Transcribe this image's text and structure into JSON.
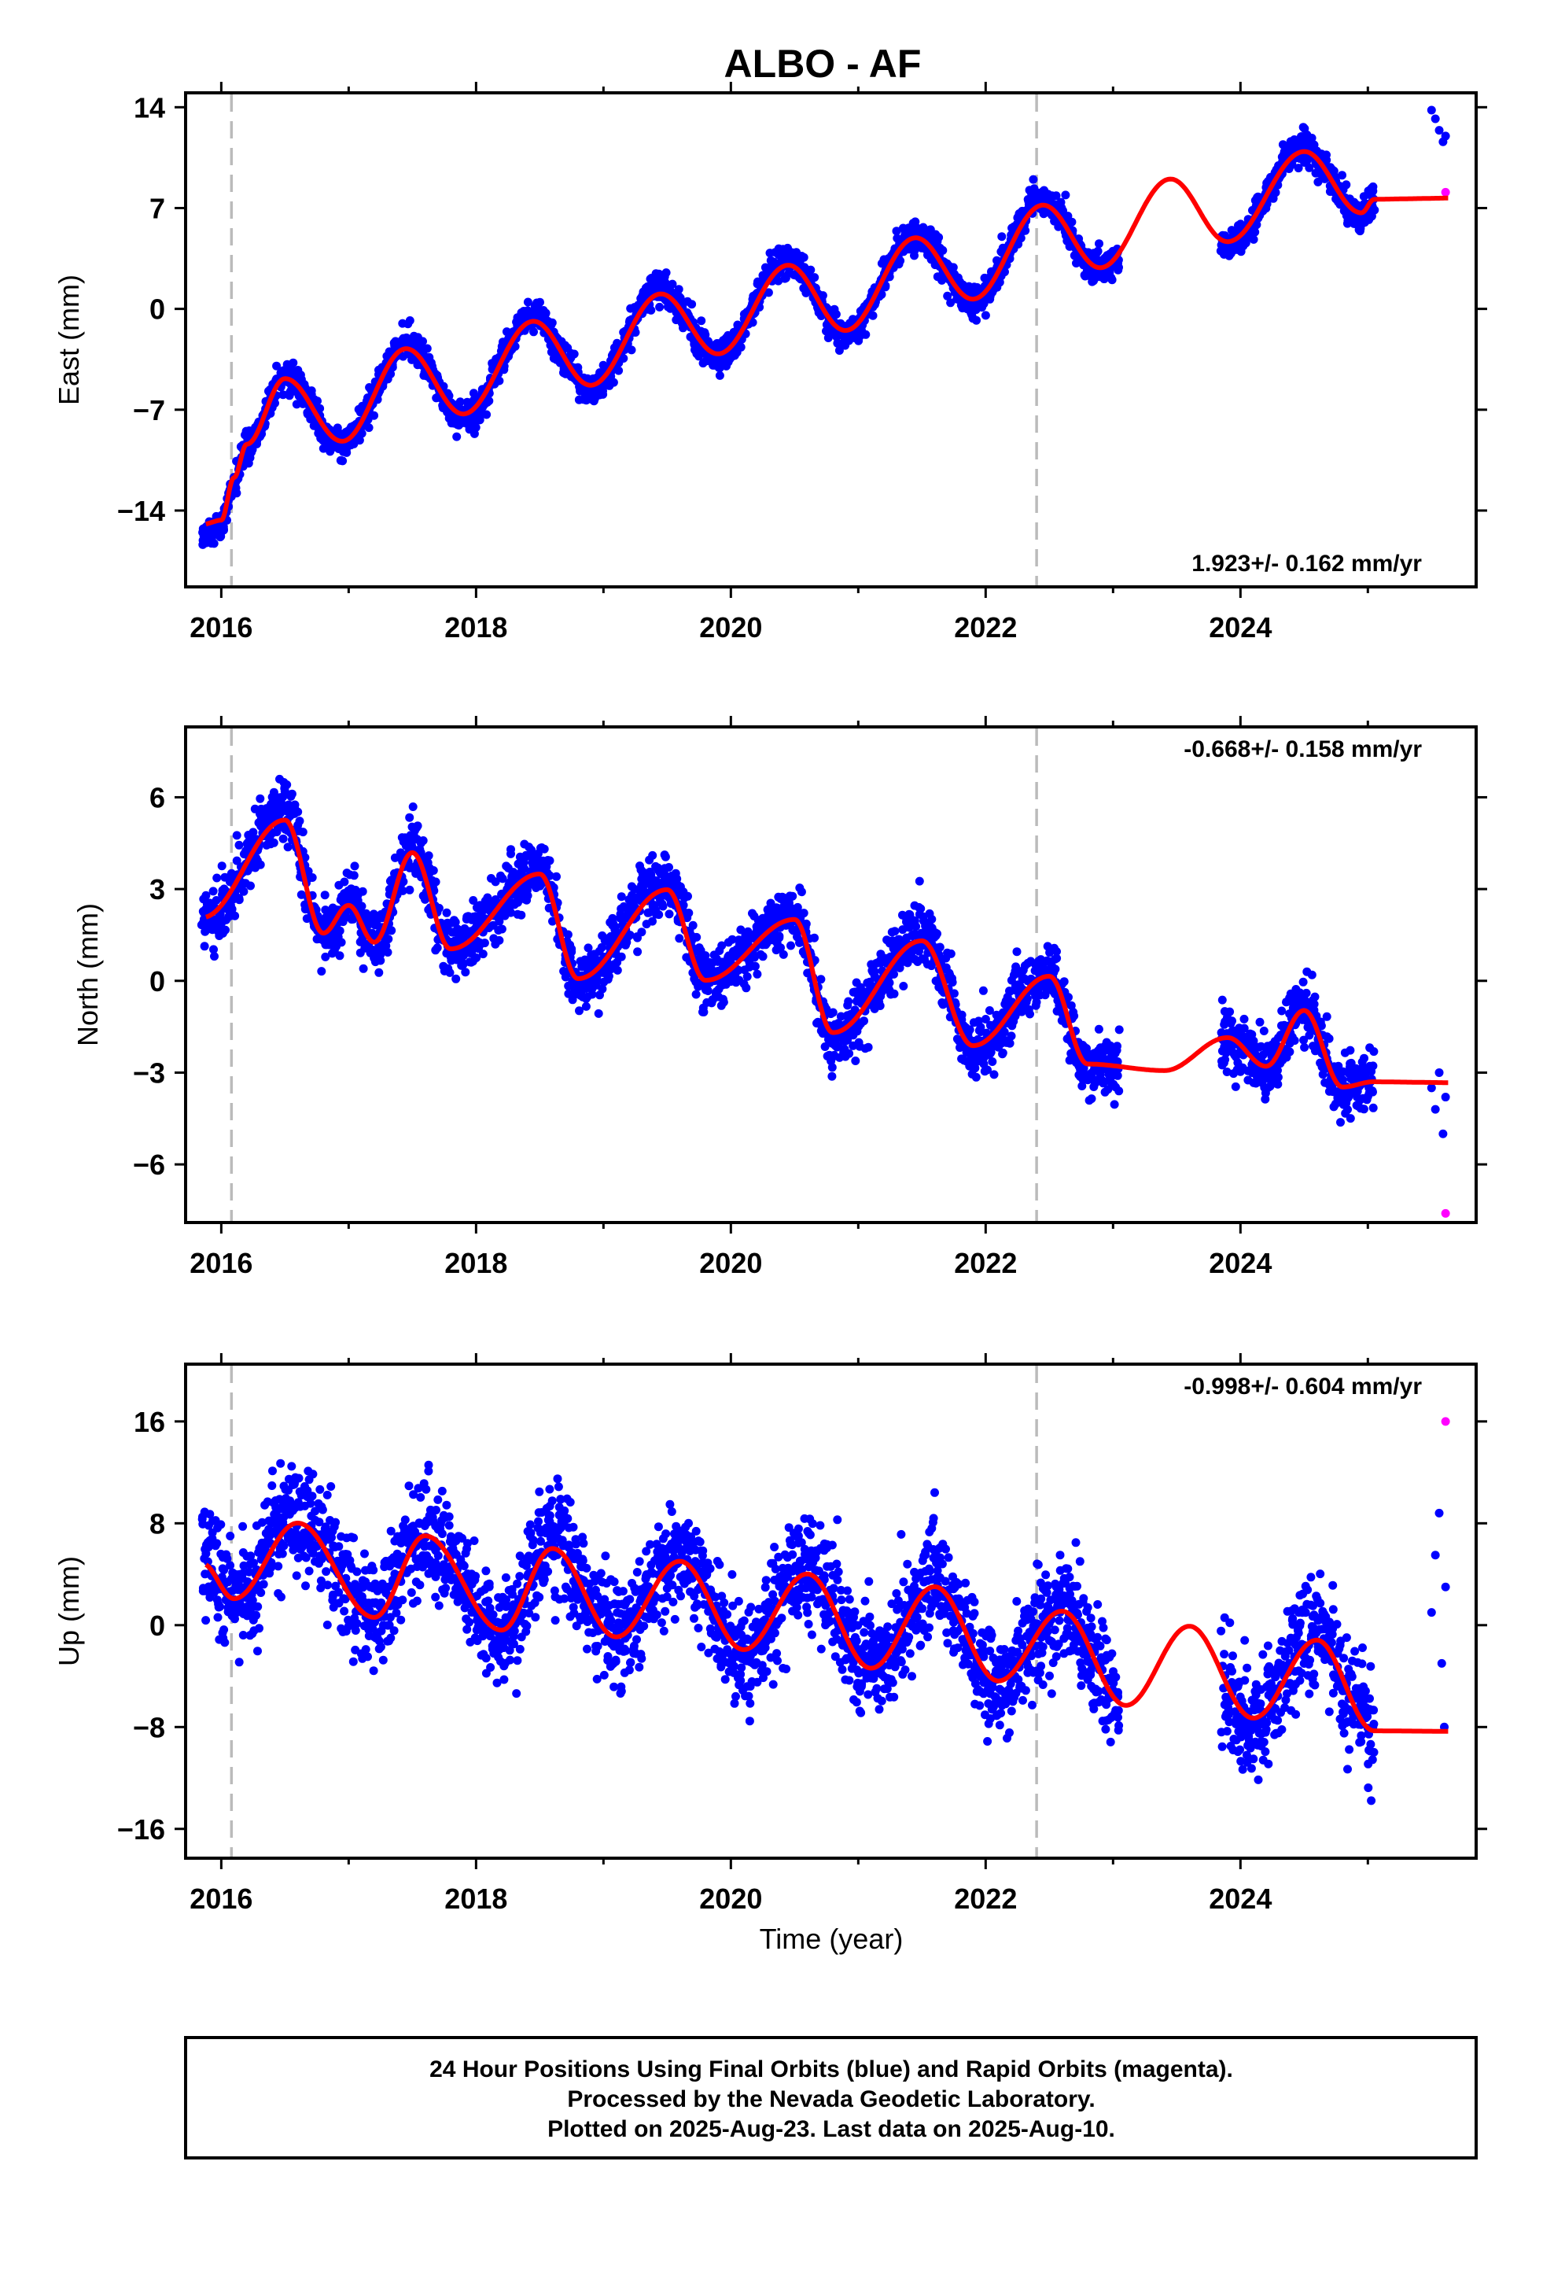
{
  "title": "ALBO - AF",
  "xlabel": "Time (year)",
  "footer": {
    "line1": "24 Hour Positions Using Final Orbits (blue) and Rapid Orbits (magenta).",
    "line2": "Processed by the Nevada Geodetic Laboratory.",
    "line3": "Plotted on 2025-Aug-23. Last data on 2025-Aug-10."
  },
  "colors": {
    "final_orbits": "#0000ff",
    "rapid_orbits": "#ff00ff",
    "model_fit": "#ff0000",
    "event_lines": "#bbbbbb"
  },
  "chart_data": [
    {
      "type": "scatter",
      "component": "east",
      "ylabel": "East (mm)",
      "xlim": [
        2015.72,
        2025.85
      ],
      "ylim": [
        -19.3,
        15
      ],
      "yticks": [
        14,
        7,
        0,
        -7,
        -14
      ],
      "ytick_labels": [
        "14",
        "7",
        "0",
        "−7",
        "−14"
      ],
      "xticks": [
        2016,
        2018,
        2020,
        2022,
        2024
      ],
      "xtick_labels": [
        "2016",
        "2018",
        "2020",
        "2022",
        "2024"
      ],
      "rate_text": "1.923+/- 0.162 mm/yr",
      "rate_position": "bottom-right",
      "event_lines": [
        2016.08,
        2022.4
      ],
      "model": {
        "rate": 1.923,
        "offset_2020": -0.9,
        "annual_amp": 3.6,
        "annual_phase": 2019.48,
        "semiannual_amp": 0.4,
        "semiannual_phase": 2019.5
      },
      "series": [
        {
          "name": "Final Orbits (blue)",
          "trend_points": [
            [
              2015.85,
              -15.5
            ],
            [
              2016.0,
              -15.2
            ],
            [
              2016.1,
              -12.0
            ],
            [
              2016.2,
              -9.5
            ],
            [
              2016.5,
              -4.6
            ],
            [
              2016.95,
              -9.4
            ],
            [
              2017.45,
              -2.5
            ],
            [
              2017.9,
              -7.5
            ],
            [
              2018.45,
              -0.6
            ],
            [
              2018.9,
              -5.5
            ],
            [
              2019.45,
              1.3
            ],
            [
              2019.9,
              -3.3
            ],
            [
              2020.45,
              3.3
            ],
            [
              2020.9,
              -1.7
            ],
            [
              2021.45,
              5.2
            ],
            [
              2021.9,
              0.5
            ],
            [
              2022.45,
              7.5
            ],
            [
              2022.9,
              2.7
            ],
            [
              2023.45,
              9.3
            ],
            [
              2023.9,
              4.5
            ],
            [
              2024.5,
              11.2
            ],
            [
              2024.95,
              6.5
            ],
            [
              2025.05,
              7.5
            ]
          ],
          "noise": 1.0,
          "spacing": 0.0027,
          "gaps": [
            [
              2023.05,
              2023.85
            ],
            [
              2025.1,
              2025.48
            ]
          ]
        },
        {
          "name": "Final Orbits (blue) recent",
          "points": [
            [
              2025.5,
              13.8
            ],
            [
              2025.53,
              13.2
            ],
            [
              2025.56,
              12.4
            ],
            [
              2025.59,
              11.6
            ],
            [
              2025.61,
              12.0
            ]
          ]
        },
        {
          "name": "Rapid Orbits (magenta)",
          "points": [
            [
              2025.61,
              8.1
            ]
          ]
        }
      ]
    },
    {
      "type": "scatter",
      "component": "north",
      "ylabel": "North (mm)",
      "xlim": [
        2015.72,
        2025.85
      ],
      "ylim": [
        -7.9,
        8.3
      ],
      "yticks": [
        6,
        3,
        0,
        -3,
        -6
      ],
      "ytick_labels": [
        "6",
        "3",
        "0",
        "−3",
        "−6"
      ],
      "xticks": [
        2016,
        2018,
        2020,
        2022,
        2024
      ],
      "xtick_labels": [
        "2016",
        "2018",
        "2020",
        "2022",
        "2024"
      ],
      "rate_text": "-0.668+/- 0.158 mm/yr",
      "rate_position": "top-right",
      "event_lines": [
        2016.08,
        2022.4
      ],
      "model": {
        "rate": -0.668,
        "offset_2020": 0.1,
        "annual_amp": 1.3,
        "annual_phase": 2019.5,
        "semiannual_amp": 1.0,
        "semiannual_phase": 2019.5
      },
      "series": [
        {
          "name": "Final Orbits (blue)",
          "trend_points": [
            [
              2015.85,
              2.0
            ],
            [
              2016.5,
              5.5
            ],
            [
              2016.8,
              1.5
            ],
            [
              2017.0,
              2.5
            ],
            [
              2017.2,
              1.2
            ],
            [
              2017.5,
              4.4
            ],
            [
              2017.8,
              1.0
            ],
            [
              2018.5,
              3.7
            ],
            [
              2018.8,
              0.0
            ],
            [
              2019.5,
              3.2
            ],
            [
              2019.8,
              0.0
            ],
            [
              2020.5,
              2.2
            ],
            [
              2020.8,
              -1.8
            ],
            [
              2021.5,
              1.5
            ],
            [
              2021.9,
              -2.2
            ],
            [
              2022.5,
              0.3
            ],
            [
              2022.8,
              -2.8
            ],
            [
              2023.4,
              -3.0
            ],
            [
              2023.9,
              -1.8
            ],
            [
              2024.2,
              -2.8
            ],
            [
              2024.5,
              -0.8
            ],
            [
              2024.8,
              -3.5
            ],
            [
              2025.05,
              -3.3
            ]
          ],
          "noise": 0.9,
          "spacing": 0.0027,
          "gaps": [
            [
              2023.05,
              2023.85
            ],
            [
              2025.1,
              2025.48
            ]
          ]
        },
        {
          "name": "Final Orbits (blue) recent",
          "points": [
            [
              2025.5,
              -3.5
            ],
            [
              2025.53,
              -4.2
            ],
            [
              2025.56,
              -3.0
            ],
            [
              2025.59,
              -5.0
            ],
            [
              2025.61,
              -3.8
            ]
          ]
        },
        {
          "name": "Rapid Orbits (magenta)",
          "points": [
            [
              2025.61,
              -7.6
            ]
          ]
        }
      ]
    },
    {
      "type": "scatter",
      "component": "up",
      "ylabel": "Up (mm)",
      "xlim": [
        2015.72,
        2025.85
      ],
      "ylim": [
        -18.3,
        20.5
      ],
      "yticks": [
        16,
        8,
        0,
        -8,
        -16
      ],
      "ytick_labels": [
        "16",
        "8",
        "0",
        "−8",
        "−16"
      ],
      "xticks": [
        2016,
        2018,
        2020,
        2022,
        2024
      ],
      "xtick_labels": [
        "2016",
        "2018",
        "2020",
        "2022",
        "2024"
      ],
      "rate_text": "-0.998+/- 0.604 mm/yr",
      "rate_position": "top-right",
      "event_lines": [
        2016.08,
        2022.4
      ],
      "model": {
        "rate": -0.998,
        "offset_2020": -0.9,
        "annual_amp": 4.3,
        "annual_phase": 2019.6,
        "semiannual_amp": 1.3,
        "semiannual_phase": 2019.6
      },
      "series": [
        {
          "name": "Final Orbits (blue)",
          "trend_points": [
            [
              2015.85,
              5.0
            ],
            [
              2016.1,
              2.0
            ],
            [
              2016.6,
              8.5
            ],
            [
              2017.2,
              0.5
            ],
            [
              2017.6,
              7.5
            ],
            [
              2018.2,
              -0.5
            ],
            [
              2018.6,
              6.5
            ],
            [
              2019.1,
              -1.0
            ],
            [
              2019.6,
              5.5
            ],
            [
              2020.1,
              -2.0
            ],
            [
              2020.6,
              4.5
            ],
            [
              2021.1,
              -3.5
            ],
            [
              2021.6,
              3.5
            ],
            [
              2022.1,
              -4.5
            ],
            [
              2022.6,
              1.5
            ],
            [
              2023.1,
              -6.5
            ],
            [
              2023.6,
              0.3
            ],
            [
              2024.1,
              -7.5
            ],
            [
              2024.6,
              -0.8
            ],
            [
              2025.05,
              -8.5
            ]
          ],
          "noise": 3.8,
          "spacing": 0.0027,
          "gaps": [
            [
              2023.05,
              2023.85
            ],
            [
              2025.1,
              2025.48
            ]
          ]
        },
        {
          "name": "Final Orbits (blue) recent",
          "points": [
            [
              2025.5,
              1.0
            ],
            [
              2025.53,
              5.5
            ],
            [
              2025.56,
              8.8
            ],
            [
              2025.58,
              -3.0
            ],
            [
              2025.6,
              -8.0
            ],
            [
              2025.61,
              3.0
            ]
          ]
        },
        {
          "name": "Rapid Orbits (magenta)",
          "points": [
            [
              2025.61,
              16.0
            ]
          ]
        }
      ]
    }
  ]
}
